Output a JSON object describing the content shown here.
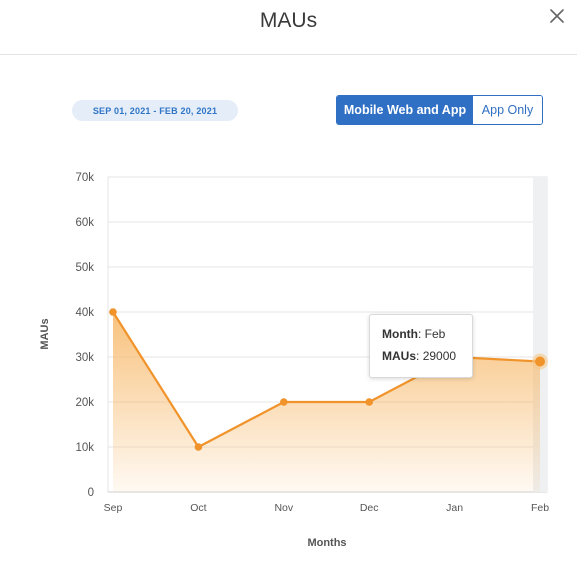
{
  "modal": {
    "title": "MAUs"
  },
  "date_range": "SEP 01, 2021 - FEB 20, 2021",
  "toggle": {
    "options": [
      "Mobile Web and App",
      "App Only"
    ],
    "selected": 0
  },
  "tooltip": {
    "month_label": "Month",
    "month_value": "Feb",
    "maus_label": "MAUs",
    "maus_value": "29000"
  },
  "colors": {
    "accent": "#2f6fc4",
    "line": "#f0932b",
    "area": "#f7b766"
  },
  "chart_data": {
    "type": "area",
    "categories": [
      "Sep",
      "Oct",
      "Nov",
      "Dec",
      "Jan",
      "Feb"
    ],
    "series": [
      {
        "values": [
          40000,
          10000,
          20000,
          20000,
          30000,
          29000
        ]
      }
    ],
    "ylim": [
      0,
      70000
    ],
    "yticks": [
      "0",
      "10k",
      "20k",
      "30k",
      "40k",
      "50k",
      "60k",
      "70k"
    ],
    "xlabel": "Months",
    "ylabel": "MAUs",
    "grid": true,
    "highlighted_category": "Feb"
  }
}
